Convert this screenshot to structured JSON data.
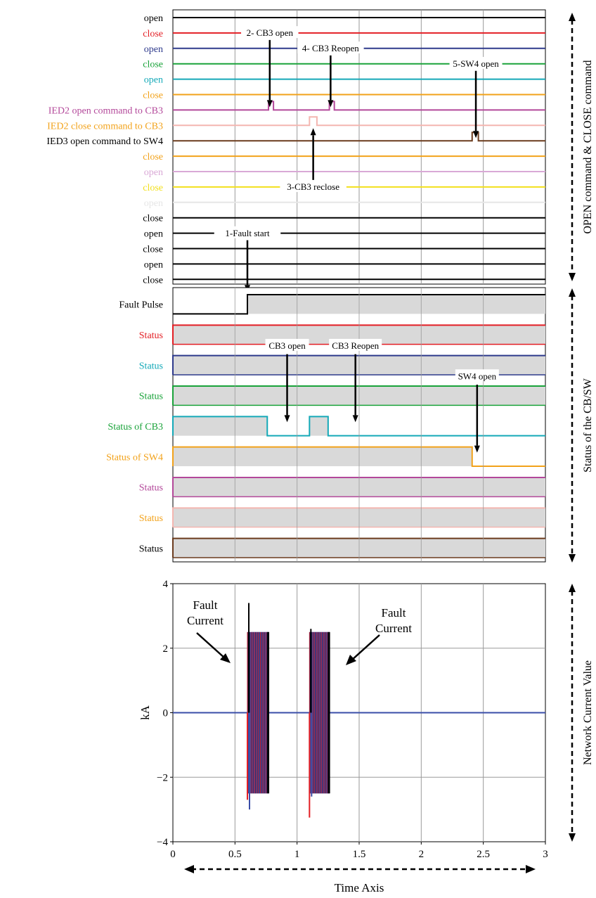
{
  "colors": {
    "black": "#000000",
    "red": "#e31e24",
    "blue": "#2e3a8c",
    "green": "#1aa33a",
    "cyan": "#14a9b8",
    "orange": "#f2a21a",
    "magenta": "#b3489a",
    "pink": "#f4b6b0",
    "brown": "#6b3b1e",
    "lilac": "#d9a9d6",
    "yellow": "#f2e01c",
    "grey": "#e6e6e6",
    "fill": "#d9d9d9",
    "gridline": "#9a9a9a",
    "currentBlue": "#3a4ea8"
  },
  "chart_data": [
    {
      "type": "line",
      "panel": "commands",
      "side_label": "OPEN command & CLOSE command",
      "channels": [
        {
          "label": "open",
          "color": "black",
          "pulses": []
        },
        {
          "label": "close",
          "color": "red",
          "pulses": []
        },
        {
          "label": "open",
          "color": "blue",
          "pulses": []
        },
        {
          "label": "close",
          "color": "green",
          "pulses": []
        },
        {
          "label": "open",
          "color": "cyan",
          "pulses": []
        },
        {
          "label": "close",
          "color": "orange",
          "pulses": []
        },
        {
          "label": "IED2 open command to CB3",
          "color": "magenta",
          "pulses": [
            [
              0.77,
              0.81
            ],
            [
              1.26,
              1.3
            ]
          ]
        },
        {
          "label": "IED2 close command to CB3",
          "color": "orange",
          "line_color": "pink",
          "pulses": [
            [
              1.1,
              1.16
            ]
          ]
        },
        {
          "label": "IED3 open command to SW4",
          "color": "black",
          "line_color": "brown",
          "pulses": [
            [
              2.41,
              2.46
            ]
          ]
        },
        {
          "label": "close",
          "color": "orange",
          "pulses": []
        },
        {
          "label": "open",
          "color": "lilac",
          "pulses": []
        },
        {
          "label": "close",
          "color": "yellow",
          "pulses": []
        },
        {
          "label": "open",
          "color": "grey",
          "pulses": []
        },
        {
          "label": "close",
          "color": "black",
          "pulses": []
        },
        {
          "label": "open",
          "color": "black",
          "pulses": []
        },
        {
          "label": "close",
          "color": "black",
          "pulses": []
        },
        {
          "label": "open",
          "color": "black",
          "pulses": []
        },
        {
          "label": "close",
          "color": "black",
          "pulses": []
        }
      ],
      "annotations": [
        {
          "text": "2- CB3 open",
          "x": 0.78,
          "row": 1,
          "arrow_to_row": 6
        },
        {
          "text": "4- CB3 Reopen",
          "x": 1.27,
          "row": 2,
          "arrow_to_row": 6
        },
        {
          "text": "5-SW4 open",
          "x": 2.44,
          "row": 3,
          "arrow_to_row": 8
        },
        {
          "text": "3-CB3 reclose",
          "x": 1.13,
          "row": 11,
          "arrow_to_row": 7,
          "up": true
        },
        {
          "text": "1-Fault start",
          "x": 0.6,
          "row": 14,
          "arrow_to_row": 18
        }
      ]
    },
    {
      "type": "line",
      "panel": "status",
      "side_label": "Status of the CB/SW",
      "channels": [
        {
          "label": "Fault Pulse",
          "color": "black",
          "high": [
            [
              0.6,
              3.0
            ]
          ],
          "start_low": true
        },
        {
          "label": "Status",
          "color": "red",
          "high": [
            [
              0,
              3.0
            ]
          ]
        },
        {
          "label": "Status",
          "color": "cyan",
          "line_color": "blue",
          "high": [
            [
              0,
              3.0
            ]
          ]
        },
        {
          "label": "Status",
          "color": "green",
          "high": [
            [
              0,
              3.0
            ]
          ]
        },
        {
          "label": "Status of CB3",
          "color": "green",
          "line_color": "cyan",
          "high": [
            [
              0,
              0.76
            ],
            [
              1.1,
              1.25
            ]
          ]
        },
        {
          "label": "Status of SW4",
          "color": "orange",
          "high": [
            [
              0,
              2.41
            ]
          ]
        },
        {
          "label": "Status",
          "color": "magenta",
          "high": [
            [
              0,
              3.0
            ]
          ]
        },
        {
          "label": "Status",
          "color": "orange",
          "line_color": "pink",
          "high": [
            [
              0,
              3.0
            ]
          ]
        },
        {
          "label": "Status",
          "color": "black",
          "line_color": "brown",
          "high": [
            [
              0,
              3.0
            ]
          ]
        }
      ],
      "annotations": [
        {
          "text": "CB3 open",
          "x": 0.92,
          "row": 2,
          "arrow_to_row": 4
        },
        {
          "text": "CB3 Reopen",
          "x": 1.47,
          "row": 2,
          "arrow_to_row": 4
        },
        {
          "text": "SW4 open",
          "x": 2.45,
          "row": 3,
          "arrow_to_row": 5
        }
      ]
    },
    {
      "type": "line",
      "panel": "current",
      "side_label": "Network Current Value",
      "ylabel": "kA",
      "xlabel": "Time Axis",
      "xlim": [
        0,
        3
      ],
      "ylim": [
        -4,
        4
      ],
      "x_ticks": [
        "0",
        "0.5",
        "1",
        "1.5",
        "2",
        "2.5",
        "3"
      ],
      "y_ticks": [
        "4",
        "2",
        "0",
        "−2",
        "−4"
      ],
      "y_tick_values": [
        4,
        2,
        0,
        -2,
        -4
      ],
      "bursts": [
        {
          "x": [
            0.6,
            0.77
          ],
          "max": 2.5,
          "min": -2.5,
          "peak_black": 3.4,
          "trough_blue": -3.0,
          "trough_red": -2.7
        },
        {
          "x": [
            1.1,
            1.26
          ],
          "max": 2.5,
          "min": -2.5,
          "peak_black": 2.6,
          "trough_blue": -2.6,
          "trough_red": -3.25
        }
      ],
      "annotations": [
        {
          "text": "Fault",
          "text2": "Current",
          "side": "left"
        },
        {
          "text": "Fault",
          "text2": "Current",
          "side": "right"
        }
      ]
    }
  ]
}
